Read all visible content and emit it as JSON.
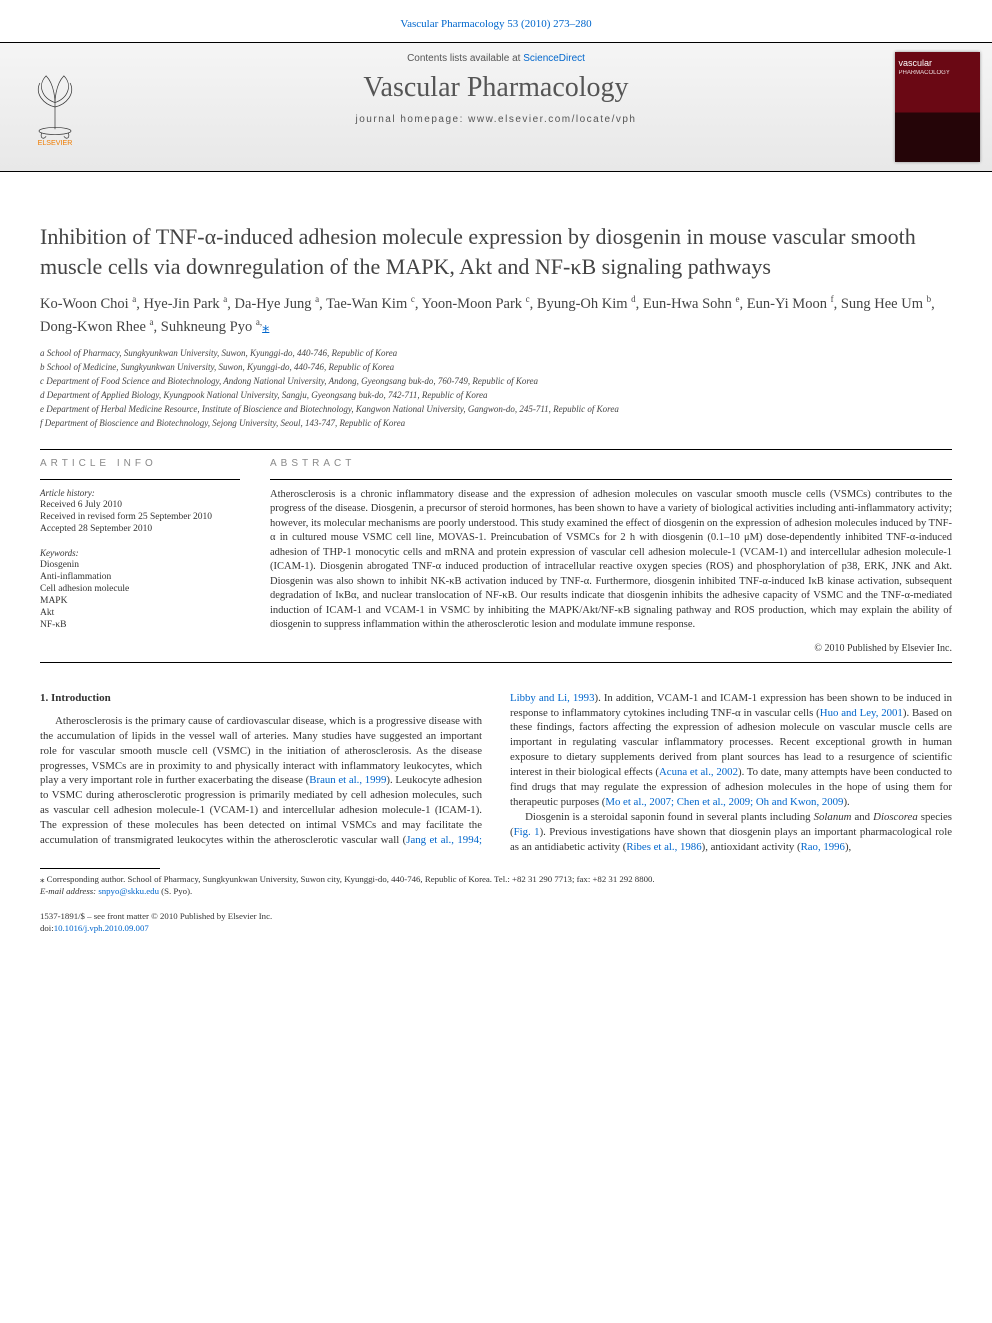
{
  "top_link": {
    "journal": "Vascular Pharmacology",
    "cite": "53 (2010) 273–280"
  },
  "masthead": {
    "contents_prefix": "Contents lists available at ",
    "contents_link": "ScienceDirect",
    "journal": "Vascular Pharmacology",
    "homepage_prefix": "journal homepage: ",
    "homepage": "www.elsevier.com/locate/vph",
    "elsevier_label": "ELSEVIER",
    "cover_text": "vascular"
  },
  "title": "Inhibition of TNF-α-induced adhesion molecule expression by diosgenin in mouse vascular smooth muscle cells via downregulation of the MAPK, Akt and NF-κB signaling pathways",
  "authors_html": "Ko-Woon Choi <sup>a</sup>, Hye-Jin Park <sup>a</sup>, Da-Hye Jung <sup>a</sup>, Tae-Wan Kim <sup>c</sup>, Yoon-Moon Park <sup>c</sup>, Byung-Oh Kim <sup>d</sup>, Eun-Hwa Sohn <sup>e</sup>, Eun-Yi Moon <sup>f</sup>, Sung Hee Um <sup>b</sup>, Dong-Kwon Rhee <sup>a</sup>, Suhkneung Pyo <sup>a,</sup>",
  "affiliations": [
    "a School of Pharmacy, Sungkyunkwan University, Suwon, Kyunggi-do, 440-746, Republic of Korea",
    "b School of Medicine, Sungkyunkwan University, Suwon, Kyunggi-do, 440-746, Republic of Korea",
    "c Department of Food Science and Biotechnology, Andong National University, Andong, Gyeongsang buk-do, 760-749, Republic of Korea",
    "d Department of Applied Biology, Kyungpook National University, Sangju, Gyeongsang buk-do, 742-711, Republic of Korea",
    "e Department of Herbal Medicine Resource, Institute of Bioscience and Biotechnology, Kangwon National University, Gangwon-do, 245-711, Republic of Korea",
    "f Department of Bioscience and Biotechnology, Sejong University, Seoul, 143-747, Republic of Korea"
  ],
  "info": {
    "article_info_label": "ARTICLE INFO",
    "abstract_label": "ABSTRACT",
    "history_label": "Article history:",
    "history": [
      "Received 6 July 2010",
      "Received in revised form 25 September 2010",
      "Accepted 28 September 2010"
    ],
    "keywords_label": "Keywords:",
    "keywords": [
      "Diosgenin",
      "Anti-inflammation",
      "Cell adhesion molecule",
      "MAPK",
      "Akt",
      "NF-κB"
    ],
    "abstract": "Atherosclerosis is a chronic inflammatory disease and the expression of adhesion molecules on vascular smooth muscle cells (VSMCs) contributes to the progress of the disease. Diosgenin, a precursor of steroid hormones, has been shown to have a variety of biological activities including anti-inflammatory activity; however, its molecular mechanisms are poorly understood. This study examined the effect of diosgenin on the expression of adhesion molecules induced by TNF-α in cultured mouse VSMC cell line, MOVAS-1. Preincubation of VSMCs for 2 h with diosgenin (0.1–10 μM) dose-dependently inhibited TNF-α-induced adhesion of THP-1 monocytic cells and mRNA and protein expression of vascular cell adhesion molecule-1 (VCAM-1) and intercellular adhesion molecule-1 (ICAM-1). Diosgenin abrogated TNF-α induced production of intracellular reactive oxygen species (ROS) and phosphorylation of p38, ERK, JNK and Akt. Diosgenin was also shown to inhibit NK-κB activation induced by TNF-α. Furthermore, diosgenin inhibited TNF-α-induced IκB kinase activation, subsequent degradation of IκBα, and nuclear translocation of NF-κB. Our results indicate that diosgenin inhibits the adhesive capacity of VSMC and the TNF-α-mediated induction of ICAM-1 and VCAM-1 in VSMC by inhibiting the MAPK/Akt/NF-κB signaling pathway and ROS production, which may explain the ability of diosgenin to suppress inflammation within the atherosclerotic lesion and modulate immune response.",
    "copyright": "© 2010 Published by Elsevier Inc."
  },
  "body": {
    "heading": "1. Introduction",
    "p1a": "Atherosclerosis is the primary cause of cardiovascular disease, which is a progressive disease with the accumulation of lipids in the vessel wall of arteries. Many studies have suggested an important role for vascular smooth muscle cell (VSMC) in the initiation of atherosclerosis. As the disease progresses, VSMCs are in proximity to and physically interact with inflammatory leukocytes, which play a very important role in further exacerbating the disease (",
    "p1_ref1": "Braun et al., 1999",
    "p1b": "). Leukocyte adhesion to VSMC during atherosclerotic progression is primarily mediated by cell adhesion molecules, such as vascular cell adhesion molecule-1 (VCAM-1) and intercellular adhesion molecule-1 (ICAM-1). The expression of these molecules has been detected on intimal VSMCs and may facilitate the accumulation of transmigrated leukocytes within the atherosclerotic vascular wall (",
    "p1_ref2": "Jang et al., 1994; Libby and Li, 1993",
    "p1c": "). In addition, VCAM-1 and ICAM-1 expression has been shown to be induced in response to inflammatory cytokines including TNF-α in vascular cells (",
    "p1_ref3": "Huo and Ley, 2001",
    "p1d": "). Based on these findings, factors affecting the expression of adhesion molecule on vascular muscle cells are important in regulating vascular inflammatory processes. Recent exceptional growth in human exposure to dietary supplements derived from plant sources has lead to a resurgence of scientific interest in their biological effects (",
    "p1_ref4": "Acuna et al., 2002",
    "p1e": "). To date, many attempts have been conducted to find drugs that may regulate the expression of adhesion molecules in the hope of using them for therapeutic purposes (",
    "p1_ref5": "Mo et al., 2007; Chen et al., 2009; Oh and Kwon, 2009",
    "p1f": ").",
    "p2a": "Diosgenin is a steroidal saponin found in several plants including ",
    "p2_em1": "Solanum",
    "p2b": " and ",
    "p2_em2": "Dioscorea",
    "p2c": " species (",
    "p2_ref1": "Fig. 1",
    "p2d": "). Previous investigations have shown that diosgenin plays an important pharmacological role as an antidiabetic activity (",
    "p2_ref2": "Ribes et al., 1986",
    "p2e": "), antioxidant activity (",
    "p2_ref3": "Rao, 1996",
    "p2f": "),"
  },
  "footnote": {
    "star": "⁎",
    "text": " Corresponding author. School of Pharmacy, Sungkyunkwan University, Suwon city, Kyunggi-do, 440-746, Republic of Korea. Tel.: +82 31 290 7713; fax: +82 31 292 8800.",
    "email_label": "E-mail address: ",
    "email": "snpyo@skku.edu",
    "email_suffix": " (S. Pyo)."
  },
  "footer": {
    "issn": "1537-1891/$ – see front matter © 2010 Published by Elsevier Inc.",
    "doi_label": "doi:",
    "doi": "10.1016/j.vph.2010.09.007"
  },
  "colors": {
    "link": "#0066cc",
    "text": "#333333",
    "heading": "#434343",
    "cover_top": "#6a0814",
    "cover_bottom": "#250508",
    "elsevier_orange": "#ef7c00"
  }
}
